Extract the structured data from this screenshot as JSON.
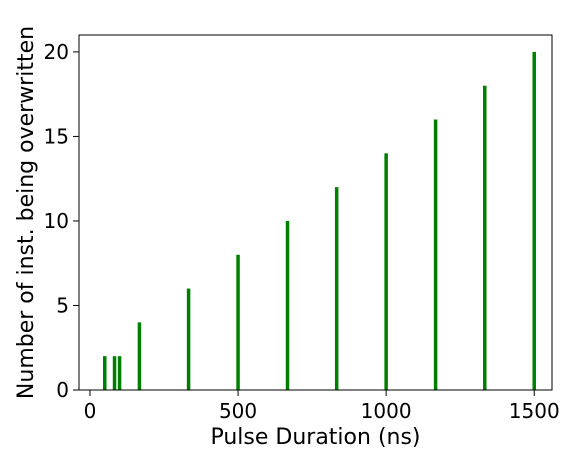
{
  "chart_data": {
    "type": "bar",
    "title": "",
    "xlabel": "Pulse Duration (ns)",
    "ylabel": "Number of inst. being overwritten",
    "xlim": [
      -37,
      1560
    ],
    "ylim": [
      0,
      21
    ],
    "xticks": [
      0,
      500,
      1000,
      1500
    ],
    "yticks": [
      0,
      5,
      10,
      15,
      20
    ],
    "grid": false,
    "series": [
      {
        "color": "#008000",
        "x": [
          50,
          83,
          100,
          167,
          333,
          500,
          667,
          833,
          1000,
          1167,
          1333,
          1500
        ],
        "values": [
          2,
          2,
          2,
          4,
          6,
          8,
          10,
          12,
          14,
          16,
          18,
          20
        ]
      }
    ]
  }
}
